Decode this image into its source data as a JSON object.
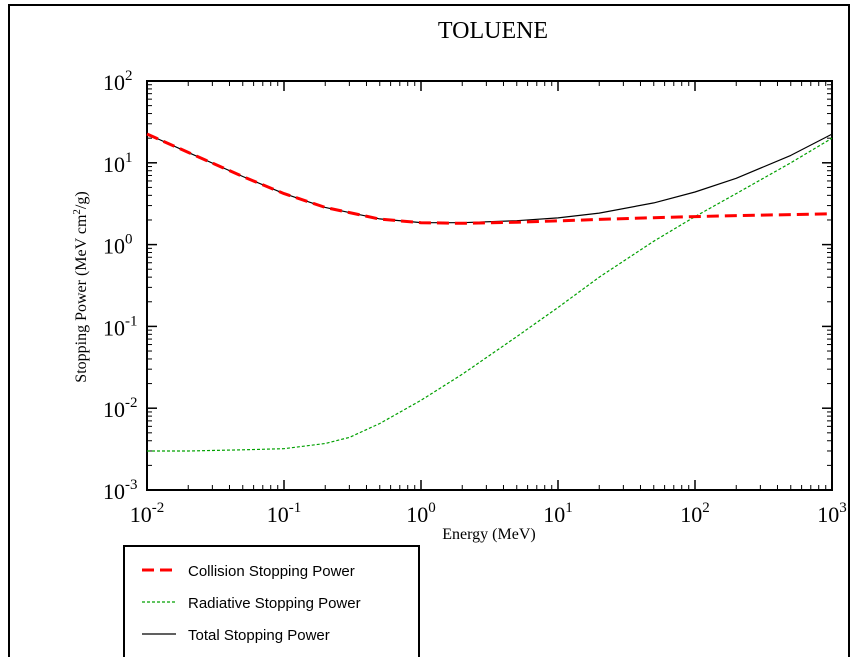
{
  "chart_data": {
    "type": "line",
    "title": "TOLUENE",
    "xlabel": "Energy (MeV)",
    "ylabel_main": "Stopping Power (MeV cm",
    "ylabel_sup": "2",
    "ylabel_tail": "/g)",
    "xscale": "log",
    "yscale": "log",
    "xlim": [
      0.01,
      1000
    ],
    "ylim": [
      0.001,
      100
    ],
    "x_ticks": [
      {
        "base": "10",
        "exp": "-2",
        "value": 0.01
      },
      {
        "base": "10",
        "exp": "-1",
        "value": 0.1
      },
      {
        "base": "10",
        "exp": "0",
        "value": 1
      },
      {
        "base": "10",
        "exp": "1",
        "value": 10
      },
      {
        "base": "10",
        "exp": "2",
        "value": 100
      },
      {
        "base": "10",
        "exp": "3",
        "value": 1000
      }
    ],
    "y_ticks": [
      {
        "base": "10",
        "exp": "-3",
        "value": 0.001
      },
      {
        "base": "10",
        "exp": "-2",
        "value": 0.01
      },
      {
        "base": "10",
        "exp": "-1",
        "value": 0.1
      },
      {
        "base": "10",
        "exp": "0",
        "value": 1
      },
      {
        "base": "10",
        "exp": "1",
        "value": 10
      },
      {
        "base": "10",
        "exp": "2",
        "value": 100
      }
    ],
    "grid": false,
    "legend_position": "below-left",
    "series": [
      {
        "name": "Collision Stopping Power",
        "color": "#ff0000",
        "style": "long-dash",
        "x": [
          0.01,
          0.02,
          0.05,
          0.1,
          0.2,
          0.5,
          1,
          2,
          5,
          10,
          20,
          50,
          100,
          200,
          500,
          1000
        ],
        "y": [
          22.5,
          13.4,
          6.8,
          4.2,
          2.85,
          2.05,
          1.85,
          1.82,
          1.88,
          1.95,
          2.03,
          2.13,
          2.2,
          2.26,
          2.33,
          2.38
        ]
      },
      {
        "name": "Radiative Stopping Power",
        "color": "#00a000",
        "style": "short-dash",
        "x": [
          0.01,
          0.02,
          0.05,
          0.1,
          0.2,
          0.3,
          0.5,
          1,
          2,
          5,
          10,
          20,
          50,
          100,
          200,
          500,
          1000
        ],
        "y": [
          0.003,
          0.003,
          0.0031,
          0.0032,
          0.0037,
          0.0044,
          0.0065,
          0.0125,
          0.026,
          0.075,
          0.17,
          0.4,
          1.1,
          2.2,
          4.2,
          10,
          20
        ]
      },
      {
        "name": "Total Stopping Power",
        "color": "#000000",
        "style": "solid",
        "x": [
          0.01,
          0.02,
          0.05,
          0.1,
          0.2,
          0.5,
          1,
          2,
          5,
          10,
          20,
          50,
          100,
          200,
          500,
          1000
        ],
        "y": [
          22.5,
          13.4,
          6.8,
          4.2,
          2.85,
          2.06,
          1.86,
          1.85,
          1.96,
          2.12,
          2.43,
          3.23,
          4.4,
          6.46,
          12.3,
          22.4
        ]
      }
    ]
  }
}
